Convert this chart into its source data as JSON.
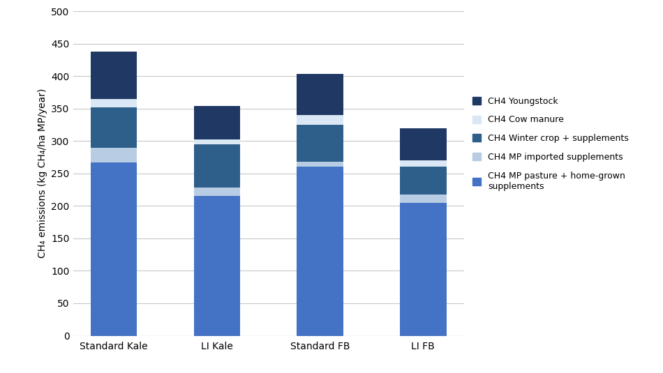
{
  "categories": [
    "Standard Kale",
    "LI Kale",
    "Standard FB",
    "LI FB"
  ],
  "series": [
    {
      "label": "CH4 MP pasture + home-grown\nsupplements",
      "color": "#4472C4",
      "values": [
        267,
        215,
        260,
        205
      ]
    },
    {
      "label": "CH4 MP imported supplements",
      "color": "#B8CCE4",
      "values": [
        22,
        13,
        8,
        12
      ]
    },
    {
      "label": "CH4 Winter crop + supplements",
      "color": "#2E5F8A",
      "values": [
        63,
        67,
        57,
        43
      ]
    },
    {
      "label": "CH4 Cow manure",
      "color": "#DAE8F5",
      "values": [
        13,
        7,
        15,
        10
      ]
    },
    {
      "label": "CH4 Youngstock",
      "color": "#1F3864",
      "values": [
        73,
        52,
        63,
        50
      ]
    }
  ],
  "ylabel": "CH₄ emissions (kg CH₄/ha MP/year)",
  "ylim": [
    0,
    500
  ],
  "yticks": [
    0,
    50,
    100,
    150,
    200,
    250,
    300,
    350,
    400,
    450,
    500
  ],
  "background_color": "#ffffff",
  "bar_width": 0.45,
  "grid_color": "#c8c8c8",
  "legend_fontsize": 9,
  "axis_fontsize": 10,
  "tick_fontsize": 10
}
